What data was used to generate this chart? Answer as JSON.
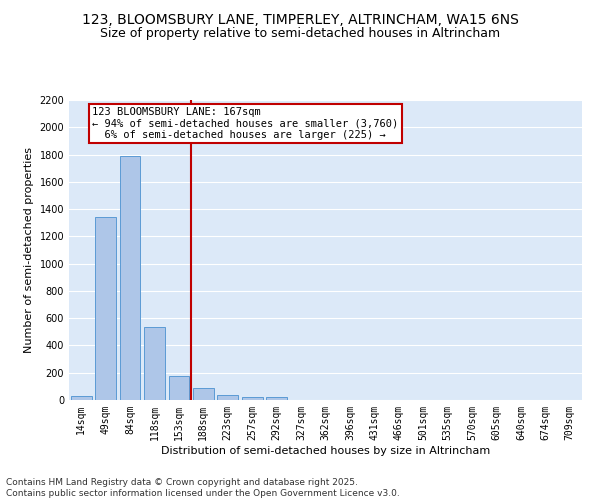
{
  "title_line1": "123, BLOOMSBURY LANE, TIMPERLEY, ALTRINCHAM, WA15 6NS",
  "title_line2": "Size of property relative to semi-detached houses in Altrincham",
  "xlabel": "Distribution of semi-detached houses by size in Altrincham",
  "ylabel": "Number of semi-detached properties",
  "categories": [
    "14sqm",
    "49sqm",
    "84sqm",
    "118sqm",
    "153sqm",
    "188sqm",
    "223sqm",
    "257sqm",
    "292sqm",
    "327sqm",
    "362sqm",
    "396sqm",
    "431sqm",
    "466sqm",
    "501sqm",
    "535sqm",
    "570sqm",
    "605sqm",
    "640sqm",
    "674sqm",
    "709sqm"
  ],
  "values": [
    30,
    1340,
    1790,
    535,
    175,
    85,
    35,
    25,
    20,
    0,
    0,
    0,
    0,
    0,
    0,
    0,
    0,
    0,
    0,
    0,
    0
  ],
  "bar_color": "#aec6e8",
  "bar_edge_color": "#5b9bd5",
  "vline_x_index": 4.5,
  "vline_color": "#c00000",
  "annotation_text": "123 BLOOMSBURY LANE: 167sqm\n← 94% of semi-detached houses are smaller (3,760)\n  6% of semi-detached houses are larger (225) →",
  "annotation_box_color": "#c00000",
  "ylim": [
    0,
    2200
  ],
  "yticks": [
    0,
    200,
    400,
    600,
    800,
    1000,
    1200,
    1400,
    1600,
    1800,
    2000,
    2200
  ],
  "background_color": "#dce9f8",
  "grid_color": "#ffffff",
  "footer_text": "Contains HM Land Registry data © Crown copyright and database right 2025.\nContains public sector information licensed under the Open Government Licence v3.0.",
  "title_fontsize": 10,
  "subtitle_fontsize": 9,
  "axis_label_fontsize": 8,
  "tick_fontsize": 7,
  "annotation_fontsize": 7.5,
  "footer_fontsize": 6.5
}
